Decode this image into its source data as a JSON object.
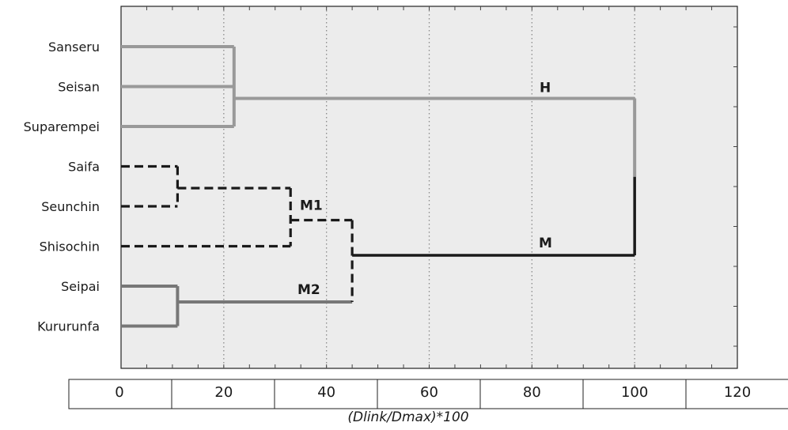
{
  "chart_data": {
    "type": "dendrogram",
    "title": "",
    "xlabel": "(Dlink/Dmax)*100",
    "ylabel": "",
    "xlim": [
      0,
      120
    ],
    "x_ticks": [
      0,
      20,
      40,
      60,
      80,
      100,
      120
    ],
    "vertical_gridlines_at": [
      20,
      40,
      60,
      80,
      100
    ],
    "grid": true,
    "leaves": [
      "Sanseru",
      "Seisan",
      "Suparempei",
      "Saifa",
      "Seunchin",
      "Shisochin",
      "Seipai",
      "Kururunfa"
    ],
    "merges": [
      {
        "children": [
          "Sanseru",
          "Seisan",
          "Suparempei"
        ],
        "height": 22,
        "cluster": "H"
      },
      {
        "children": [
          "Saifa",
          "Seunchin"
        ],
        "height": 11
      },
      {
        "children": [
          "Saifa+Seunchin",
          "Shisochin"
        ],
        "height": 33,
        "cluster": "M1"
      },
      {
        "children": [
          "Seipai",
          "Kururunfa"
        ],
        "height": 11,
        "cluster": "M2"
      },
      {
        "children": [
          "M1",
          "M2"
        ],
        "height": 45,
        "cluster": "M"
      },
      {
        "children": [
          "H",
          "M"
        ],
        "height": 100
      }
    ],
    "cluster_labels": [
      "H",
      "M1",
      "M",
      "M2"
    ],
    "colors": {
      "H": "#999999",
      "M1": "#1a1a1a",
      "M2": "#777777",
      "M": "#1a1a1a",
      "background": "#ececec"
    }
  }
}
